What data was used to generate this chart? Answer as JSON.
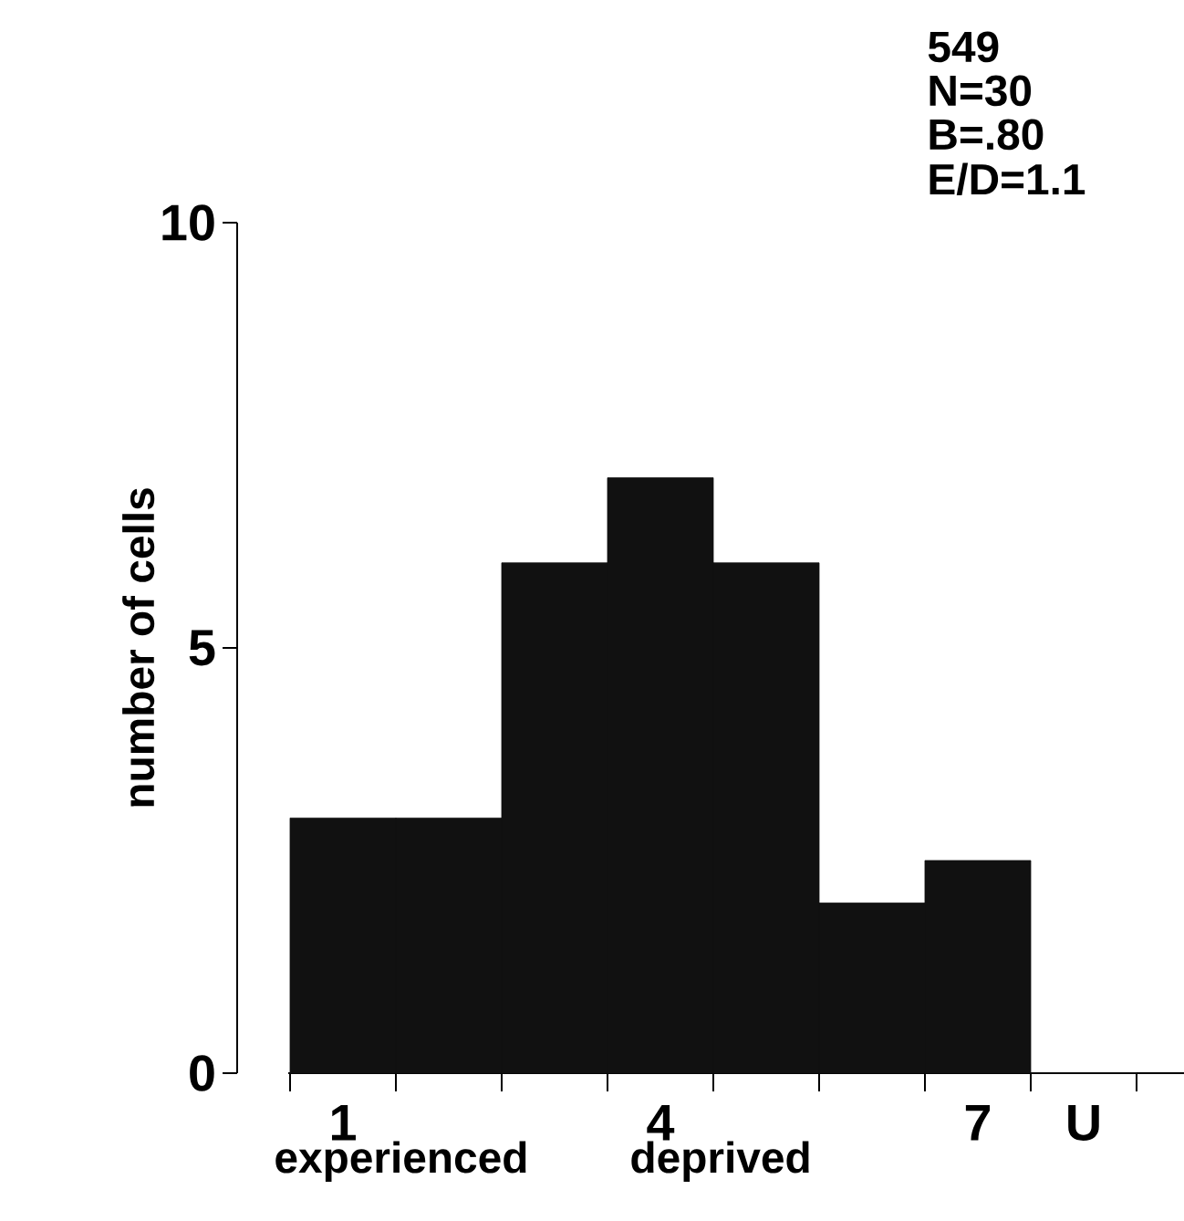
{
  "chart_data": {
    "type": "bar",
    "categories": [
      "1",
      null,
      null,
      "4",
      null,
      null,
      "7",
      "U"
    ],
    "values": [
      3,
      3,
      6,
      7,
      6,
      2,
      2.5,
      0
    ],
    "color": "#111111",
    "ylabel": "number of cells",
    "ylim": [
      0,
      10
    ],
    "yticks": [
      0,
      5,
      10
    ],
    "annotations": [
      "549",
      "N=30",
      "B=.80",
      "E/D=1.1",
      "experienced",
      "deprived"
    ],
    "grid": false
  }
}
